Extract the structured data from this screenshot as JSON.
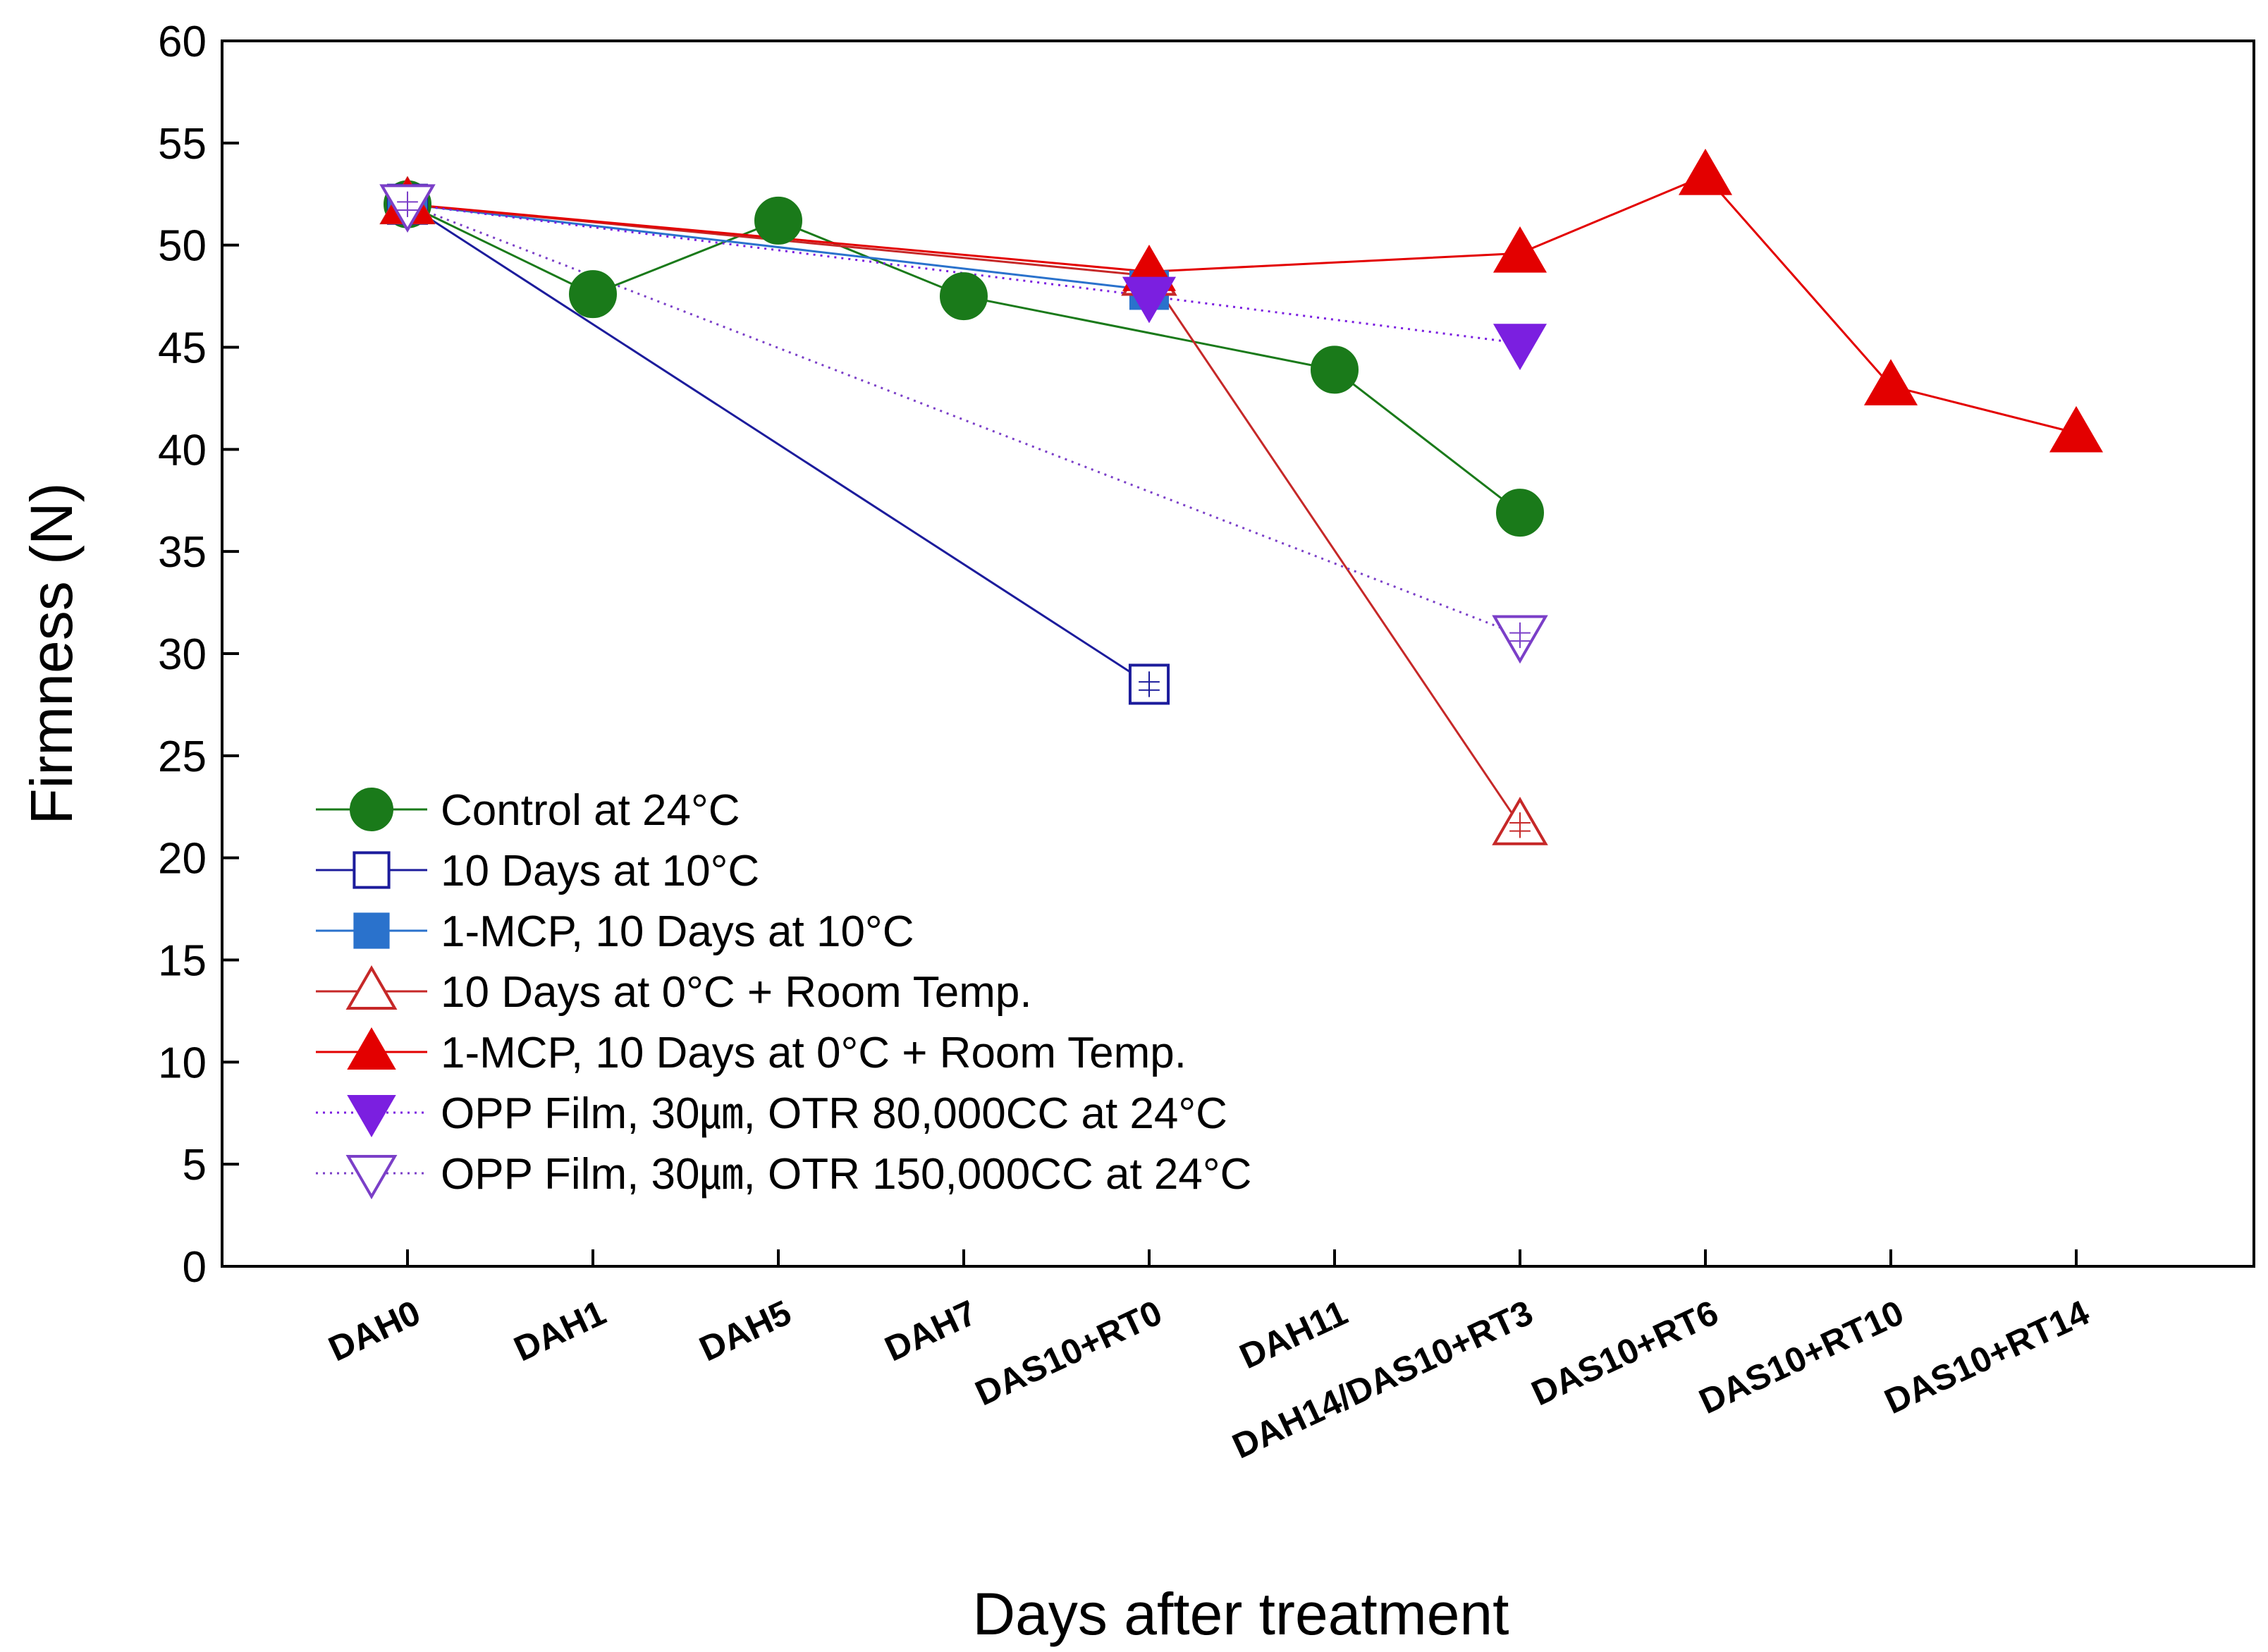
{
  "chart_data": {
    "type": "line",
    "title": "",
    "xlabel": "Days after treatment",
    "ylabel": "Firmness (N)",
    "ylim": [
      0,
      60
    ],
    "yticks": [
      0,
      5,
      10,
      15,
      20,
      25,
      30,
      35,
      40,
      45,
      50,
      55,
      60
    ],
    "grid": false,
    "legend_position": "lower-left",
    "categories": [
      "DAH0",
      "DAH1",
      "DAH5",
      "DAH7",
      "DAS10+RT0",
      "DAH11",
      "DAH14/DAS10+RT3",
      "DAS10+RT6",
      "DAS10+RT10",
      "DAS10+RT14"
    ],
    "series": [
      {
        "name": "Control at 24°C",
        "color": "#1a7a1a",
        "line_style": "solid",
        "marker": "circle-filled",
        "points": [
          [
            0,
            52.0
          ],
          [
            1,
            47.6
          ],
          [
            2,
            51.2
          ],
          [
            3,
            47.5
          ],
          [
            5,
            43.9
          ],
          [
            6,
            36.9
          ]
        ]
      },
      {
        "name": "10 Days at 10°C",
        "color": "#1c1c9c",
        "line_style": "solid",
        "marker": "square-open",
        "points": [
          [
            0,
            52.0
          ],
          [
            4,
            28.5
          ]
        ]
      },
      {
        "name": "1-MCP, 10 Days at 10°C",
        "color": "#2a72cc",
        "line_style": "solid",
        "marker": "square-filled",
        "points": [
          [
            0,
            52.0
          ],
          [
            4,
            47.8
          ]
        ]
      },
      {
        "name": "10 Days at 0°C + Room Temp.",
        "color": "#c62828",
        "line_style": "solid",
        "marker": "triangle-up-open",
        "points": [
          [
            0,
            52.0
          ],
          [
            4,
            48.5
          ],
          [
            6,
            21.6
          ]
        ]
      },
      {
        "name": "1-MCP, 10 Days at 0°C + Room Temp.",
        "color": "#e30000",
        "line_style": "solid",
        "marker": "triangle-up-filled",
        "points": [
          [
            0,
            52.0
          ],
          [
            4,
            48.7
          ],
          [
            6,
            49.6
          ],
          [
            7,
            53.4
          ],
          [
            8,
            43.1
          ],
          [
            9,
            40.8
          ]
        ]
      },
      {
        "name": "OPP Film, 30㎛, OTR 80,000CC at 24°C",
        "color": "#7b1fe0",
        "line_style": "dotted",
        "marker": "triangle-down-filled",
        "points": [
          [
            0,
            52.0
          ],
          [
            4,
            47.5
          ],
          [
            6,
            45.2
          ]
        ]
      },
      {
        "name": "OPP Film, 30㎛, OTR 150,000CC at 24°C",
        "color": "#7b3fc8",
        "line_style": "dotted",
        "marker": "triangle-down-open",
        "points": [
          [
            0,
            52.0
          ],
          [
            6,
            30.9
          ]
        ]
      }
    ]
  }
}
